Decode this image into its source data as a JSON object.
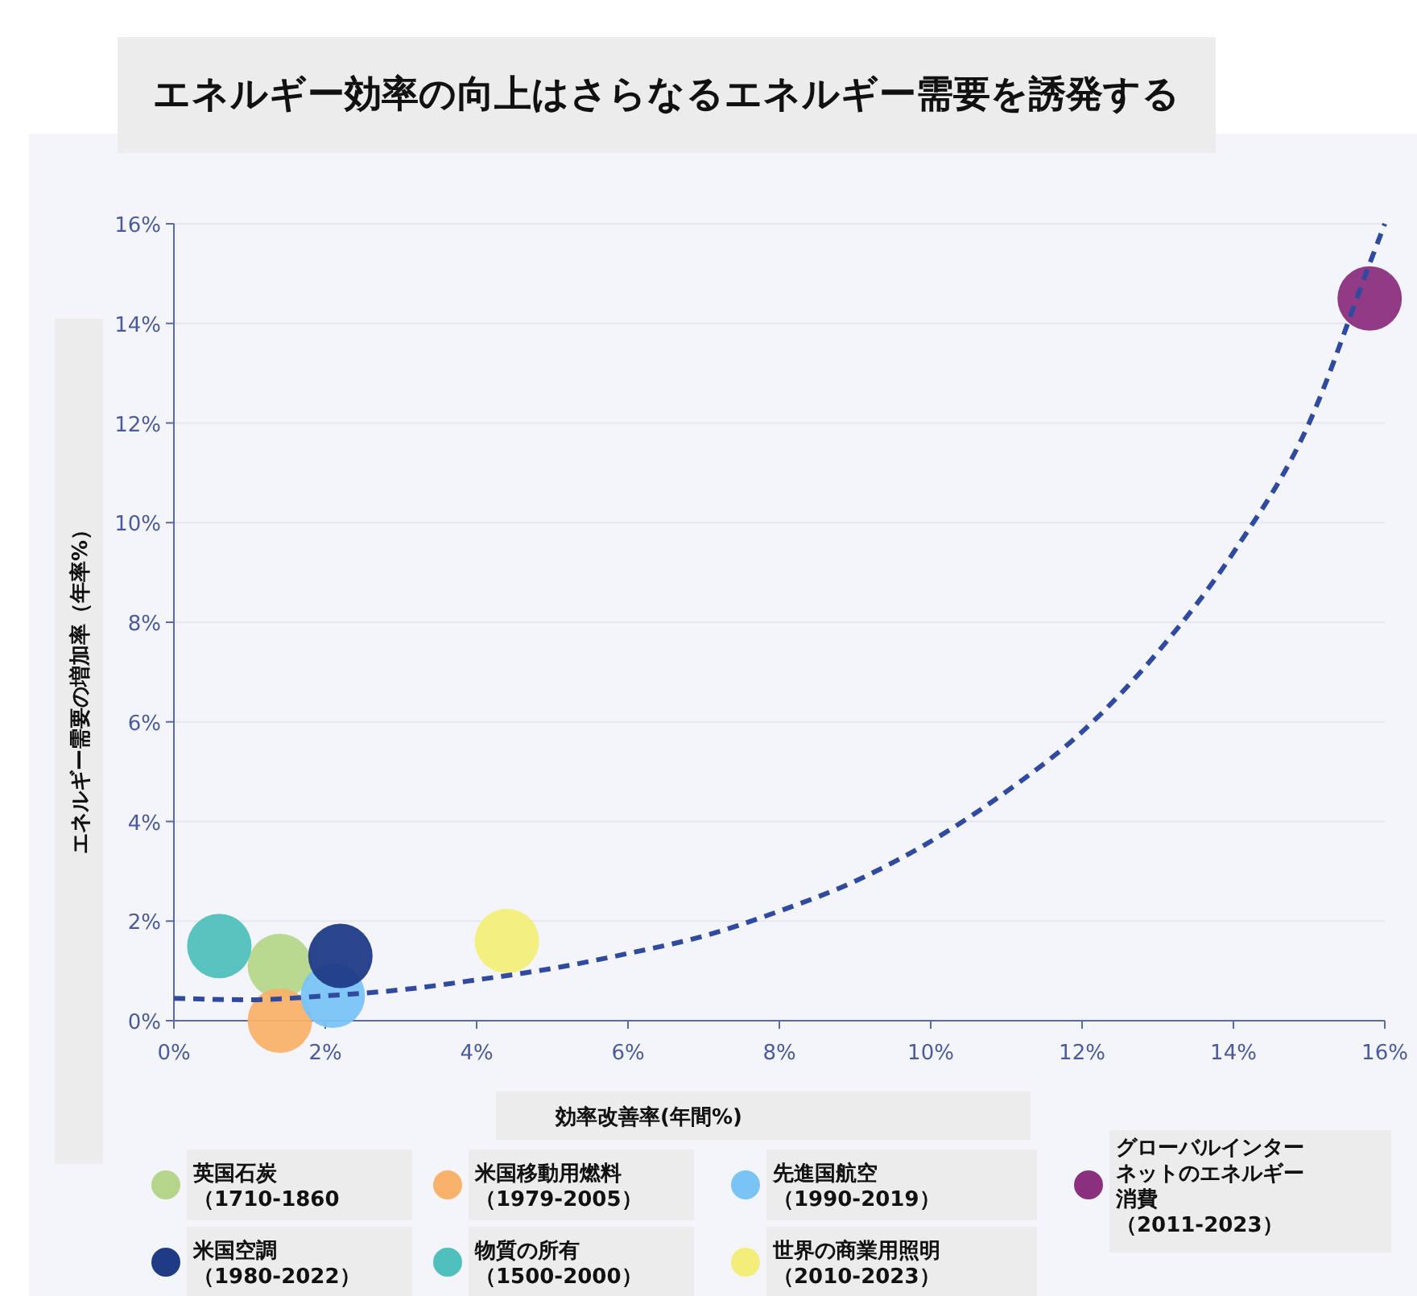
{
  "chart_data": {
    "type": "scatter",
    "title": "エネルギー効率の向上はさらなるエネルギー需要を誘発する",
    "xlabel": "効率改善率(年間%)",
    "ylabel": "エネルギー需要の増加率（年率%）",
    "xlim": [
      0,
      16
    ],
    "ylim": [
      0,
      16
    ],
    "xticks": [
      {
        "value": 0,
        "label": "0%"
      },
      {
        "value": 2,
        "label": "2%"
      },
      {
        "value": 4,
        "label": "4%"
      },
      {
        "value": 6,
        "label": "6%"
      },
      {
        "value": 8,
        "label": "8%"
      },
      {
        "value": 10,
        "label": "10%"
      },
      {
        "value": 12,
        "label": "12%"
      },
      {
        "value": 14,
        "label": "14%"
      },
      {
        "value": 16,
        "label": "16%"
      }
    ],
    "yticks": [
      {
        "value": 0,
        "label": "0%"
      },
      {
        "value": 2,
        "label": "2%"
      },
      {
        "value": 4,
        "label": "4%"
      },
      {
        "value": 6,
        "label": "6%"
      },
      {
        "value": 8,
        "label": "8%"
      },
      {
        "value": 10,
        "label": "10%"
      },
      {
        "value": 12,
        "label": "12%"
      },
      {
        "value": 14,
        "label": "14%"
      },
      {
        "value": 16,
        "label": "16%"
      }
    ],
    "grid": "y",
    "legend": "bottom",
    "marker": "circle",
    "series": [
      {
        "type": "line",
        "line_style": "dashed",
        "marker": "none",
        "color": "#2f4a9e",
        "x": [
          0,
          1,
          2,
          3,
          4,
          5,
          6,
          7,
          8,
          9,
          10,
          11,
          12,
          13,
          14,
          15,
          15.8,
          16
        ],
        "values": [
          0.45,
          0.42,
          0.5,
          0.62,
          0.82,
          1.05,
          1.35,
          1.7,
          2.2,
          2.8,
          3.6,
          4.6,
          5.8,
          7.4,
          9.4,
          12.0,
          15.2,
          16
        ]
      },
      {
        "name": "英国石炭（1710-1860",
        "color": "#b5d68a",
        "x": [
          1.4
        ],
        "values": [
          1.1
        ]
      },
      {
        "name": "米国移動用燃料（1979-2005）",
        "color": "#f8b26a",
        "x": [
          1.4
        ],
        "values": [
          0.0
        ]
      },
      {
        "name": "先進国航空（1990-2019）",
        "color": "#79c3f5",
        "x": [
          2.1
        ],
        "values": [
          0.5
        ]
      },
      {
        "name": "グローバルインターネットのエネルギー消費（2011-2023）",
        "color": "#8b2f7f",
        "x": [
          15.8
        ],
        "values": [
          14.5
        ]
      },
      {
        "name": "米国空調（1980-2022）",
        "color": "#1f3b85",
        "x": [
          2.2
        ],
        "values": [
          1.3
        ]
      },
      {
        "name": "物質の所有（1500-2000）",
        "color": "#4fc0bc",
        "x": [
          0.6
        ],
        "values": [
          1.5
        ]
      },
      {
        "name": "世界の商業用照明（2010-2023）",
        "color": "#f3ee7a",
        "x": [
          4.4
        ],
        "values": [
          1.6
        ]
      }
    ]
  }
}
